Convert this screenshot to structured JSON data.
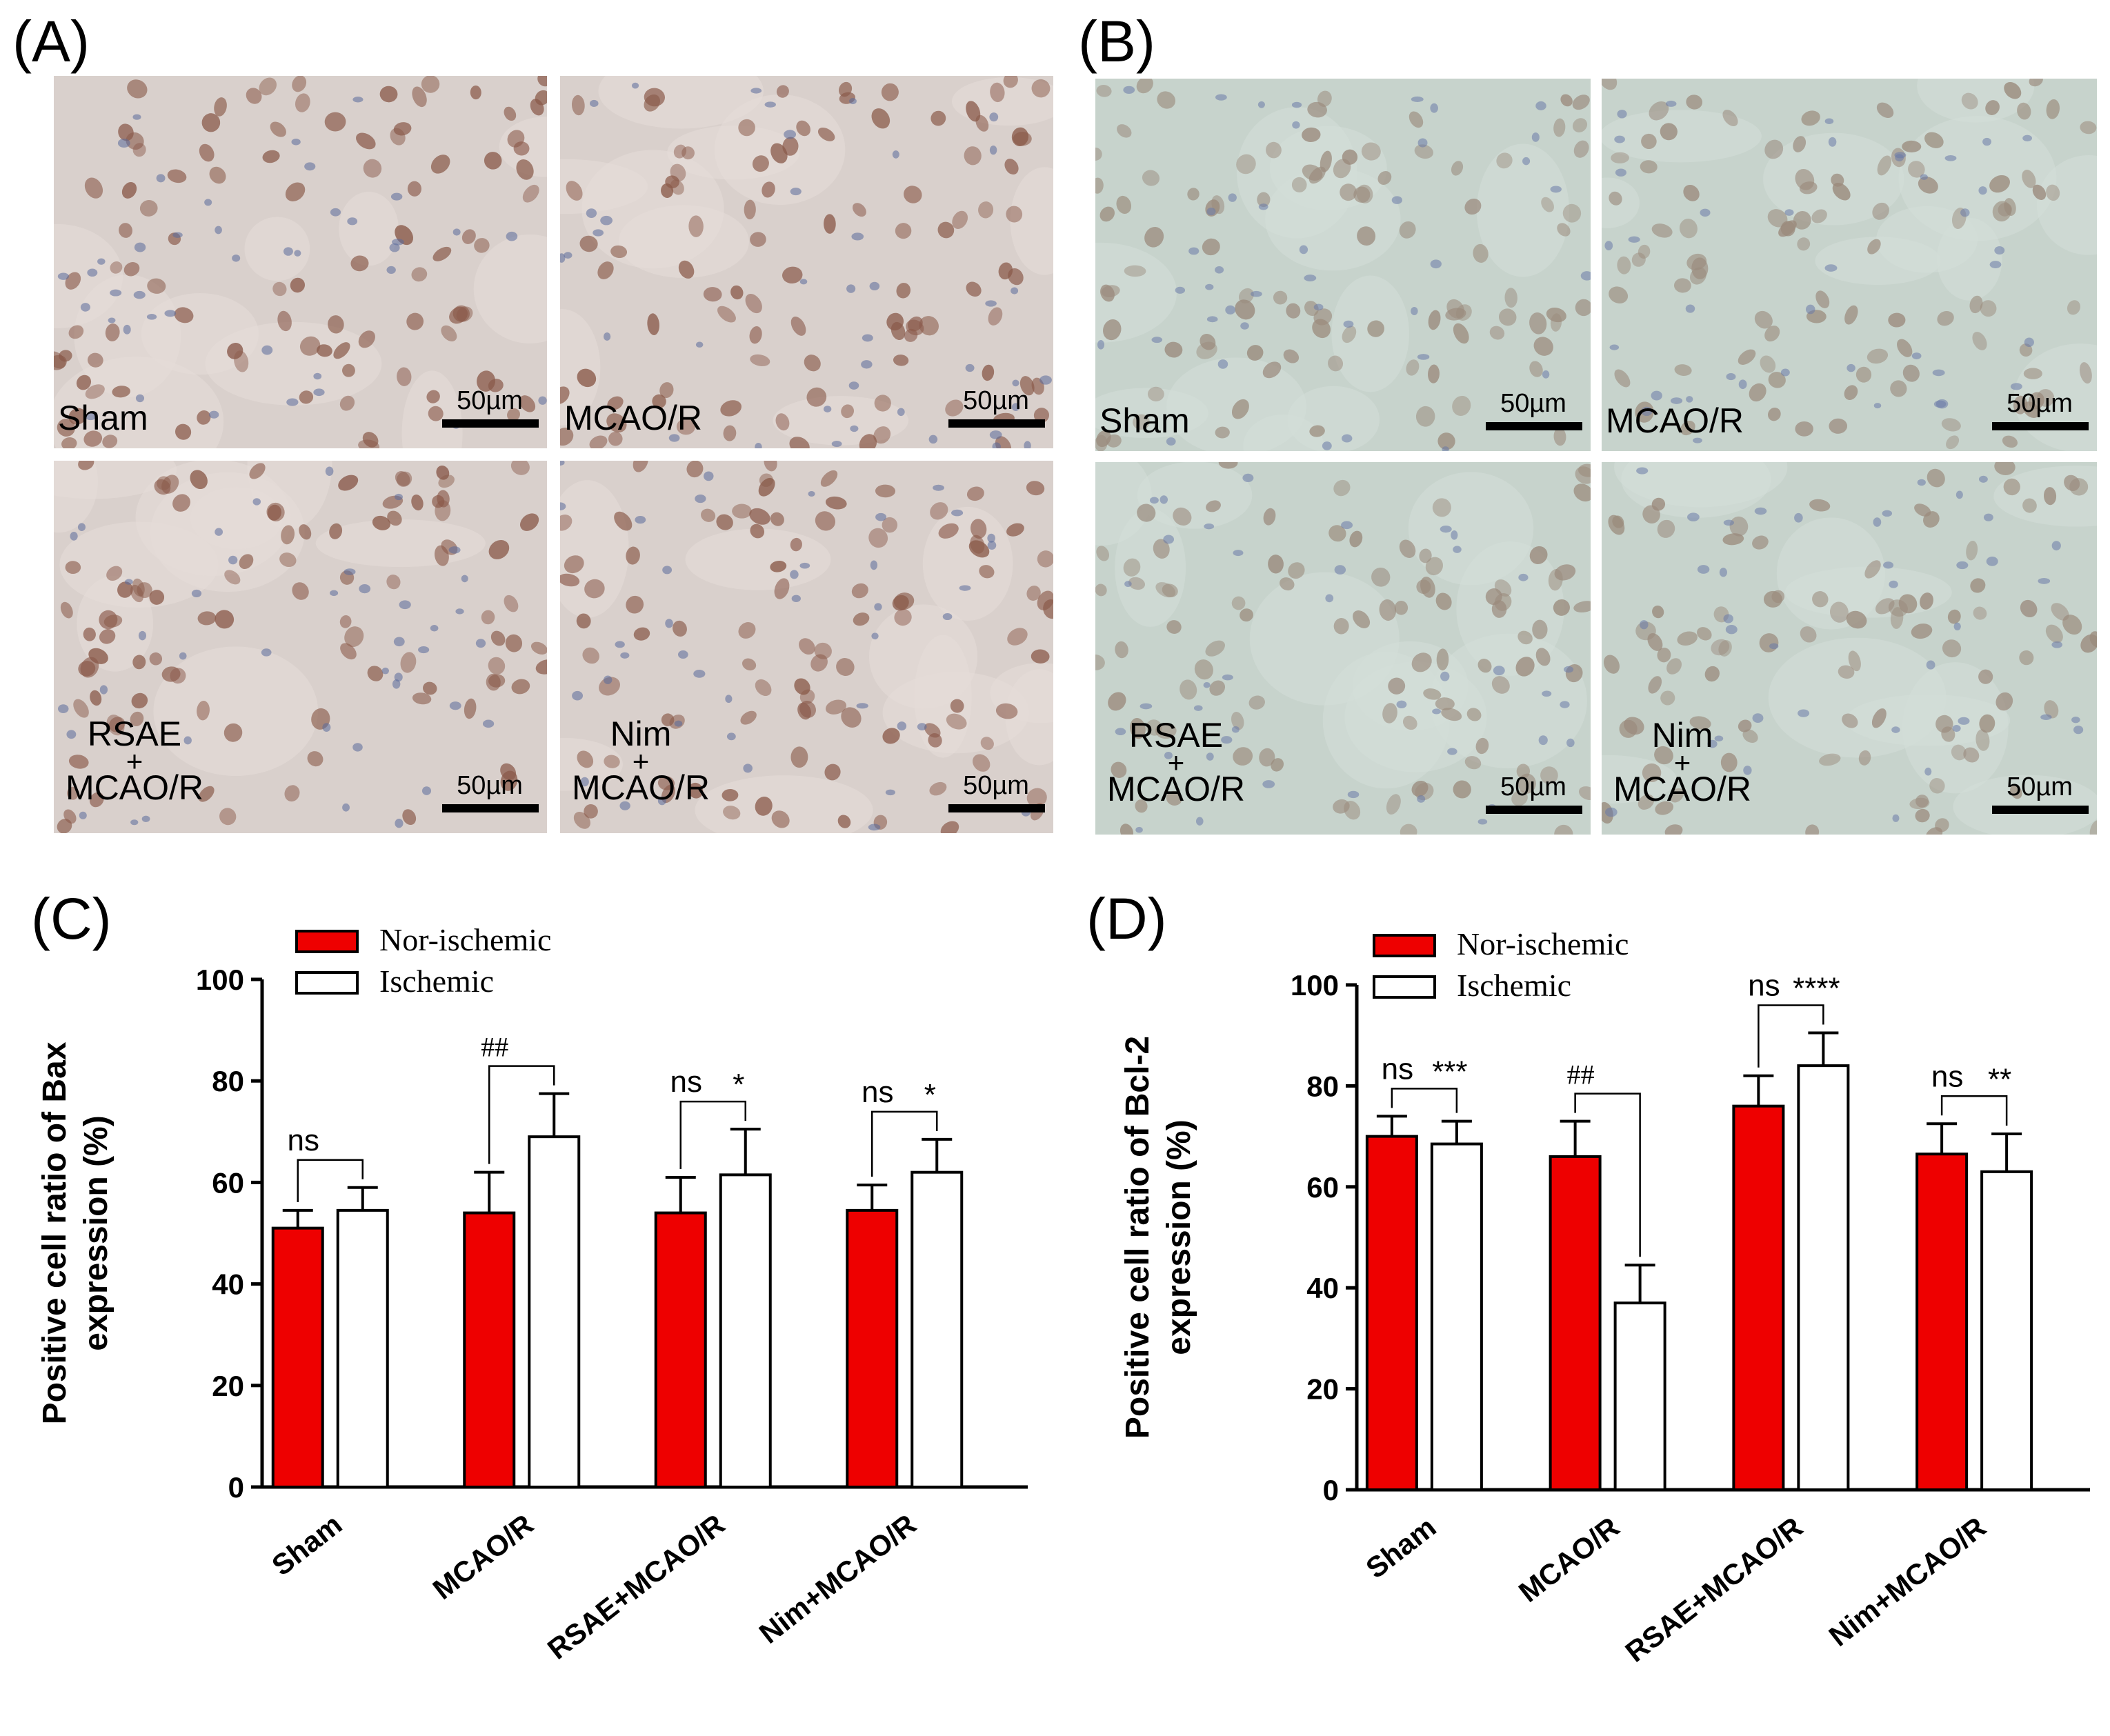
{
  "panels": {
    "A": {
      "label": "(A)"
    },
    "B": {
      "label": "(B)"
    },
    "C": {
      "label": "(C)"
    },
    "D": {
      "label": "(D)"
    }
  },
  "micrographs": {
    "scale_text": "50µm",
    "A": [
      {
        "line1": "Sham",
        "line2": "",
        "line3": ""
      },
      {
        "line1": "MCAO/R",
        "line2": "",
        "line3": ""
      },
      {
        "line1": "RSAE",
        "line2": "+",
        "line3": "MCAO/R"
      },
      {
        "line1": "Nim",
        "line2": "+",
        "line3": "MCAO/R"
      }
    ],
    "B": [
      {
        "line1": "Sham",
        "line2": "",
        "line3": ""
      },
      {
        "line1": "MCAO/R",
        "line2": "",
        "line3": ""
      },
      {
        "line1": "RSAE",
        "line2": "+",
        "line3": "MCAO/R"
      },
      {
        "line1": "Nim",
        "line2": "+",
        "line3": "MCAO/R"
      }
    ],
    "colors": {
      "A_bg": "#d9d0cc",
      "A_cell": "#8a5a4a",
      "A_nuc": "#5a6a9a",
      "B_bg": "#c7d3cc",
      "B_cell": "#9a8a7c",
      "B_nuc": "#6a7aa8"
    }
  },
  "chart_data": [
    {
      "type": "bar",
      "panel": "C",
      "categories": [
        "Sham",
        "MCAO/R",
        "RSAE+MCAO/R",
        "Nim+MCAO/R"
      ],
      "series": [
        {
          "name": "Nor-ischemic",
          "color": "#ee0000",
          "values": [
            51,
            54,
            54,
            54.5
          ],
          "errors": [
            3.5,
            8,
            7,
            5
          ]
        },
        {
          "name": "Ischemic",
          "color": "#ffffff",
          "values": [
            54.5,
            69,
            61.5,
            62
          ],
          "errors": [
            4.5,
            8.5,
            9,
            6.5
          ]
        }
      ],
      "ylabel_line1": "Positive cell ratio of Bax",
      "ylabel_line2": "expression (%)",
      "ylim": [
        0,
        100
      ],
      "yticks": [
        "0",
        "20",
        "40",
        "60",
        "80",
        "100"
      ],
      "annotations": [
        {
          "category": 0,
          "left": "ns",
          "right": "",
          "bracket": true
        },
        {
          "category": 1,
          "left": "##",
          "right": "",
          "bracket": true
        },
        {
          "category": 2,
          "left": "ns",
          "right": "*",
          "bracket": true
        },
        {
          "category": 3,
          "left": "ns",
          "right": "*",
          "bracket": true
        }
      ]
    },
    {
      "type": "bar",
      "panel": "D",
      "categories": [
        "Sham",
        "MCAO/R",
        "RSAE+MCAO/R",
        "Nim+MCAO/R"
      ],
      "series": [
        {
          "name": "Nor-ischemic",
          "color": "#ee0000",
          "values": [
            70,
            66,
            76,
            66.5
          ],
          "errors": [
            4,
            7,
            6,
            6
          ]
        },
        {
          "name": "Ischemic",
          "color": "#ffffff",
          "values": [
            68.5,
            37,
            84,
            63
          ],
          "errors": [
            4.5,
            7.5,
            6.5,
            7.5
          ]
        }
      ],
      "ylabel_line1": "Positive cell ratio of Bcl-2",
      "ylabel_line2": "expression (%)",
      "ylim": [
        0,
        100
      ],
      "yticks": [
        "0",
        "20",
        "40",
        "60",
        "80",
        "100"
      ],
      "annotations": [
        {
          "category": 0,
          "left": "ns",
          "right": "***",
          "bracket": true
        },
        {
          "category": 1,
          "left": "##",
          "right": "",
          "bracket": true
        },
        {
          "category": 2,
          "left": "ns",
          "right": "****",
          "bracket": true
        },
        {
          "category": 3,
          "left": "ns",
          "right": "**",
          "bracket": true
        }
      ]
    }
  ]
}
